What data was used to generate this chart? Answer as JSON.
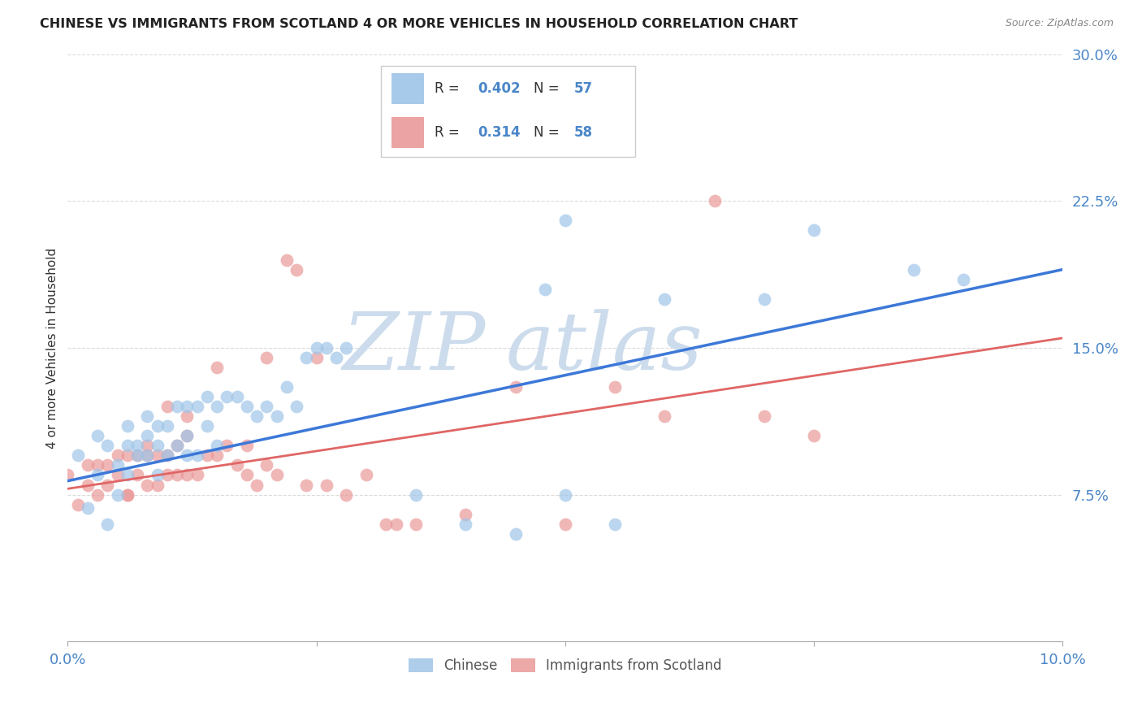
{
  "title": "CHINESE VS IMMIGRANTS FROM SCOTLAND 4 OR MORE VEHICLES IN HOUSEHOLD CORRELATION CHART",
  "source": "Source: ZipAtlas.com",
  "ylabel": "4 or more Vehicles in Household",
  "xmin": 0.0,
  "xmax": 0.1,
  "ymin": 0.0,
  "ymax": 0.3,
  "yticks": [
    0.0,
    0.075,
    0.15,
    0.225,
    0.3
  ],
  "ytick_labels": [
    "",
    "7.5%",
    "15.0%",
    "22.5%",
    "30.0%"
  ],
  "xticks": [
    0.0,
    0.025,
    0.05,
    0.075,
    0.1
  ],
  "xtick_labels": [
    "0.0%",
    "",
    "",
    "",
    "10.0%"
  ],
  "background_color": "#ffffff",
  "grid_color": "#cccccc",
  "blue_color": "#9fc5e8",
  "pink_color": "#ea9999",
  "line_blue": "#3c78d8",
  "line_pink": "#e06666",
  "label_color": "#4a86c8",
  "legend_r_blue": "0.402",
  "legend_n_blue": "57",
  "legend_r_pink": "0.314",
  "legend_n_pink": "58",
  "chinese_label": "Chinese",
  "scotland_label": "Immigrants from Scotland",
  "blue_points_x": [
    0.001,
    0.002,
    0.003,
    0.003,
    0.004,
    0.004,
    0.005,
    0.005,
    0.006,
    0.006,
    0.006,
    0.007,
    0.007,
    0.008,
    0.008,
    0.008,
    0.009,
    0.009,
    0.009,
    0.01,
    0.01,
    0.011,
    0.011,
    0.012,
    0.012,
    0.012,
    0.013,
    0.013,
    0.014,
    0.014,
    0.015,
    0.015,
    0.016,
    0.017,
    0.018,
    0.019,
    0.02,
    0.021,
    0.022,
    0.023,
    0.024,
    0.025,
    0.026,
    0.027,
    0.028,
    0.035,
    0.04,
    0.045,
    0.048,
    0.05,
    0.055,
    0.06,
    0.07,
    0.075,
    0.085,
    0.09,
    0.05
  ],
  "blue_points_y": [
    0.095,
    0.068,
    0.085,
    0.105,
    0.06,
    0.1,
    0.09,
    0.075,
    0.085,
    0.1,
    0.11,
    0.095,
    0.1,
    0.095,
    0.105,
    0.115,
    0.085,
    0.1,
    0.11,
    0.095,
    0.11,
    0.1,
    0.12,
    0.095,
    0.105,
    0.12,
    0.095,
    0.12,
    0.11,
    0.125,
    0.1,
    0.12,
    0.125,
    0.125,
    0.12,
    0.115,
    0.12,
    0.115,
    0.13,
    0.12,
    0.145,
    0.15,
    0.15,
    0.145,
    0.15,
    0.075,
    0.06,
    0.055,
    0.18,
    0.215,
    0.06,
    0.175,
    0.175,
    0.21,
    0.19,
    0.185,
    0.075
  ],
  "pink_points_x": [
    0.0,
    0.001,
    0.002,
    0.002,
    0.003,
    0.003,
    0.004,
    0.004,
    0.005,
    0.005,
    0.006,
    0.006,
    0.007,
    0.007,
    0.008,
    0.008,
    0.009,
    0.009,
    0.01,
    0.01,
    0.011,
    0.011,
    0.012,
    0.012,
    0.013,
    0.014,
    0.015,
    0.016,
    0.017,
    0.018,
    0.019,
    0.02,
    0.021,
    0.022,
    0.023,
    0.024,
    0.025,
    0.026,
    0.028,
    0.03,
    0.032,
    0.033,
    0.035,
    0.04,
    0.045,
    0.05,
    0.055,
    0.06,
    0.065,
    0.07,
    0.075,
    0.015,
    0.018,
    0.02,
    0.012,
    0.008,
    0.01,
    0.006
  ],
  "pink_points_y": [
    0.085,
    0.07,
    0.08,
    0.09,
    0.075,
    0.09,
    0.08,
    0.09,
    0.085,
    0.095,
    0.075,
    0.095,
    0.085,
    0.095,
    0.08,
    0.095,
    0.08,
    0.095,
    0.085,
    0.095,
    0.085,
    0.1,
    0.105,
    0.085,
    0.085,
    0.095,
    0.095,
    0.1,
    0.09,
    0.085,
    0.08,
    0.09,
    0.085,
    0.195,
    0.19,
    0.08,
    0.145,
    0.08,
    0.075,
    0.085,
    0.06,
    0.06,
    0.06,
    0.065,
    0.13,
    0.06,
    0.13,
    0.115,
    0.225,
    0.115,
    0.105,
    0.14,
    0.1,
    0.145,
    0.115,
    0.1,
    0.12,
    0.075
  ],
  "blue_line_x": [
    0.0,
    0.1
  ],
  "blue_line_y": [
    0.082,
    0.19
  ],
  "pink_line_x": [
    0.0,
    0.1
  ],
  "pink_line_y": [
    0.078,
    0.155
  ],
  "watermark_zip": "ZIP",
  "watermark_atlas": "atlas",
  "watermark_color": "#ccdcec"
}
